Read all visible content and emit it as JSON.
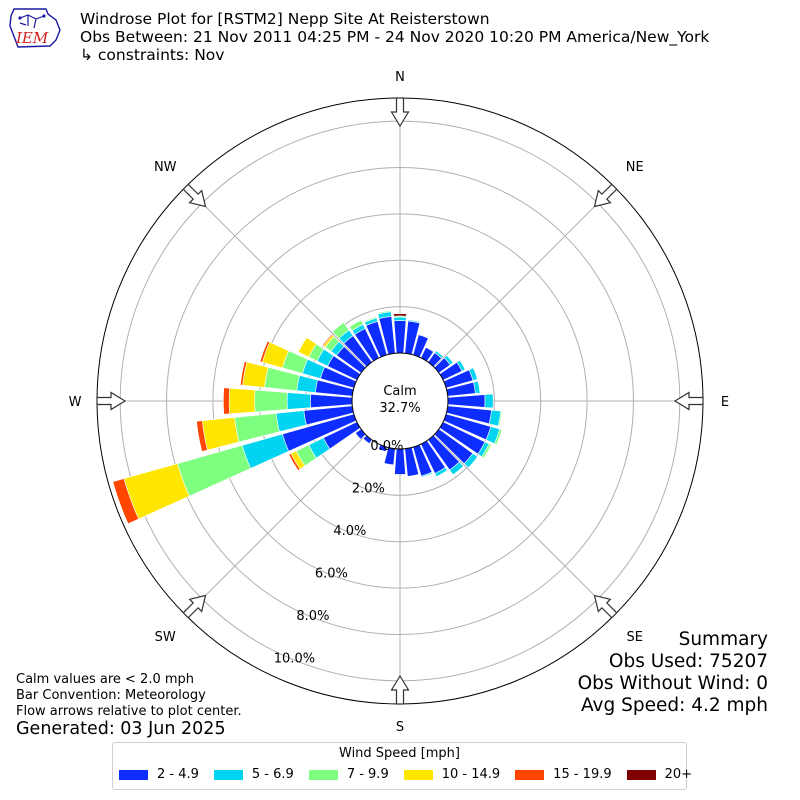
{
  "header": {
    "logo_text": "IEM",
    "title_line1": "Windrose Plot for [RSTM2] Nepp Site At Reisterstown",
    "title_line2": "Obs Between: 21 Nov 2011 04:25 PM - 24 Nov 2020 10:20 PM America/New_York",
    "title_line3": "↳ constraints: Nov"
  },
  "notes": {
    "line1": "Calm values are < 2.0 mph",
    "line2": "Bar Convention: Meteorology",
    "line3": "Flow arrows relative to plot center.",
    "generated": "Generated: 03 Jun 2025"
  },
  "summary": {
    "title": "Summary",
    "obs_used": "Obs Used: 75207",
    "obs_without_wind": "Obs Without Wind: 0",
    "avg_speed": "Avg Speed: 4.2 mph"
  },
  "legend": {
    "title": "Wind Speed [mph]",
    "items": [
      {
        "label": "2 - 4.9",
        "color": "#0d2dff"
      },
      {
        "label": "5 - 6.9",
        "color": "#00d4f0"
      },
      {
        "label": "7 - 9.9",
        "color": "#7fff7f"
      },
      {
        "label": "10 - 14.9",
        "color": "#ffe600"
      },
      {
        "label": "15 - 19.9",
        "color": "#ff4500"
      },
      {
        "label": "20+",
        "color": "#7f0000"
      }
    ]
  },
  "chart_data": {
    "type": "windrose",
    "calm_label": "Calm",
    "calm_value": "32.7%",
    "radial_unit": "percent",
    "radial_ticks": [
      0,
      2,
      4,
      6,
      8,
      10
    ],
    "radial_tick_labels": [
      "0.0%",
      "2.0%",
      "4.0%",
      "6.0%",
      "8.0%",
      "10.0%"
    ],
    "rmax": 11,
    "directions": [
      "N",
      "NE",
      "E",
      "SE",
      "S",
      "SW",
      "W",
      "NW"
    ],
    "speed_bins": [
      "2 - 4.9",
      "5 - 6.9",
      "7 - 9.9",
      "10 - 14.9",
      "15 - 19.9",
      "20+"
    ],
    "sectors": [
      {
        "dir": 0,
        "values": [
          1.4,
          0.15,
          0.05,
          0.0,
          0.0,
          0.1
        ]
      },
      {
        "dir": 10,
        "values": [
          1.4,
          0.05,
          0.0,
          0.0,
          0.0,
          0.0
        ]
      },
      {
        "dir": 20,
        "values": [
          0.9,
          0.0,
          0.0,
          0.0,
          0.0,
          0.0
        ]
      },
      {
        "dir": 30,
        "values": [
          0.5,
          0.0,
          0.0,
          0.0,
          0.0,
          0.0
        ]
      },
      {
        "dir": 40,
        "values": [
          0.5,
          0.1,
          0.0,
          0.0,
          0.0,
          0.0
        ]
      },
      {
        "dir": 50,
        "values": [
          0.6,
          0.15,
          0.0,
          0.0,
          0.0,
          0.0
        ]
      },
      {
        "dir": 60,
        "values": [
          0.9,
          0.15,
          0.0,
          0.0,
          0.0,
          0.0
        ]
      },
      {
        "dir": 70,
        "values": [
          1.2,
          0.2,
          0.0,
          0.0,
          0.0,
          0.0
        ]
      },
      {
        "dir": 80,
        "values": [
          1.2,
          0.2,
          0.0,
          0.0,
          0.0,
          0.0
        ]
      },
      {
        "dir": 90,
        "values": [
          1.6,
          0.35,
          0.0,
          0.0,
          0.0,
          0.0
        ]
      },
      {
        "dir": 100,
        "values": [
          1.9,
          0.4,
          0.05,
          0.0,
          0.0,
          0.0
        ]
      },
      {
        "dir": 110,
        "values": [
          2.0,
          0.4,
          0.1,
          0.0,
          0.0,
          0.0
        ]
      },
      {
        "dir": 120,
        "values": [
          2.0,
          0.2,
          0.1,
          0.0,
          0.0,
          0.0
        ]
      },
      {
        "dir": 130,
        "values": [
          1.8,
          0.25,
          0.0,
          0.0,
          0.0,
          0.0
        ]
      },
      {
        "dir": 140,
        "values": [
          1.6,
          0.25,
          0.0,
          0.0,
          0.0,
          0.0
        ]
      },
      {
        "dir": 150,
        "values": [
          1.4,
          0.15,
          0.0,
          0.0,
          0.0,
          0.0
        ]
      },
      {
        "dir": 160,
        "values": [
          1.3,
          0.05,
          0.0,
          0.0,
          0.0,
          0.0
        ]
      },
      {
        "dir": 170,
        "values": [
          1.2,
          0.0,
          0.0,
          0.0,
          0.0,
          0.0
        ]
      },
      {
        "dir": 180,
        "values": [
          1.1,
          0.0,
          0.0,
          0.0,
          0.0,
          0.0
        ]
      },
      {
        "dir": 190,
        "values": [
          0.7,
          0.0,
          0.0,
          0.0,
          0.0,
          0.0
        ]
      },
      {
        "dir": 200,
        "values": [
          0.2,
          0.0,
          0.0,
          0.0,
          0.0,
          0.0
        ]
      },
      {
        "dir": 210,
        "values": [
          0.0,
          0.0,
          0.0,
          0.0,
          0.0,
          0.0
        ]
      },
      {
        "dir": 220,
        "values": [
          0.2,
          0.0,
          0.0,
          0.0,
          0.0,
          0.0
        ]
      },
      {
        "dir": 230,
        "values": [
          0.3,
          0.0,
          0.0,
          0.0,
          0.0,
          0.0
        ]
      },
      {
        "dir": 240,
        "values": [
          1.6,
          0.7,
          0.6,
          0.25,
          0.1,
          0.0
        ]
      },
      {
        "dir": 250,
        "values": [
          3.2,
          1.8,
          2.9,
          2.4,
          0.5,
          0.0
        ]
      },
      {
        "dir": 260,
        "values": [
          2.1,
          1.2,
          1.8,
          1.4,
          0.25,
          0.0
        ]
      },
      {
        "dir": 270,
        "values": [
          1.8,
          1.0,
          1.4,
          1.1,
          0.25,
          0.0
        ]
      },
      {
        "dir": 280,
        "values": [
          1.6,
          0.8,
          1.4,
          0.95,
          0.1,
          0.0
        ]
      },
      {
        "dir": 290,
        "values": [
          1.5,
          0.8,
          0.9,
          0.9,
          0.1,
          0.0
        ]
      },
      {
        "dir": 300,
        "values": [
          1.4,
          0.5,
          0.4,
          0.5,
          0.0,
          0.0
        ]
      },
      {
        "dir": 310,
        "values": [
          1.3,
          0.3,
          0.3,
          0.1,
          0.05,
          0.0
        ]
      },
      {
        "dir": 320,
        "values": [
          1.4,
          0.3,
          0.4,
          0.0,
          0.0,
          0.0
        ]
      },
      {
        "dir": 330,
        "values": [
          1.4,
          0.2,
          0.2,
          0.0,
          0.0,
          0.0
        ]
      },
      {
        "dir": 340,
        "values": [
          1.5,
          0.15,
          0.05,
          0.0,
          0.0,
          0.0
        ]
      },
      {
        "dir": 350,
        "values": [
          1.6,
          0.2,
          0.05,
          0.0,
          0.0,
          0.0
        ]
      }
    ]
  }
}
